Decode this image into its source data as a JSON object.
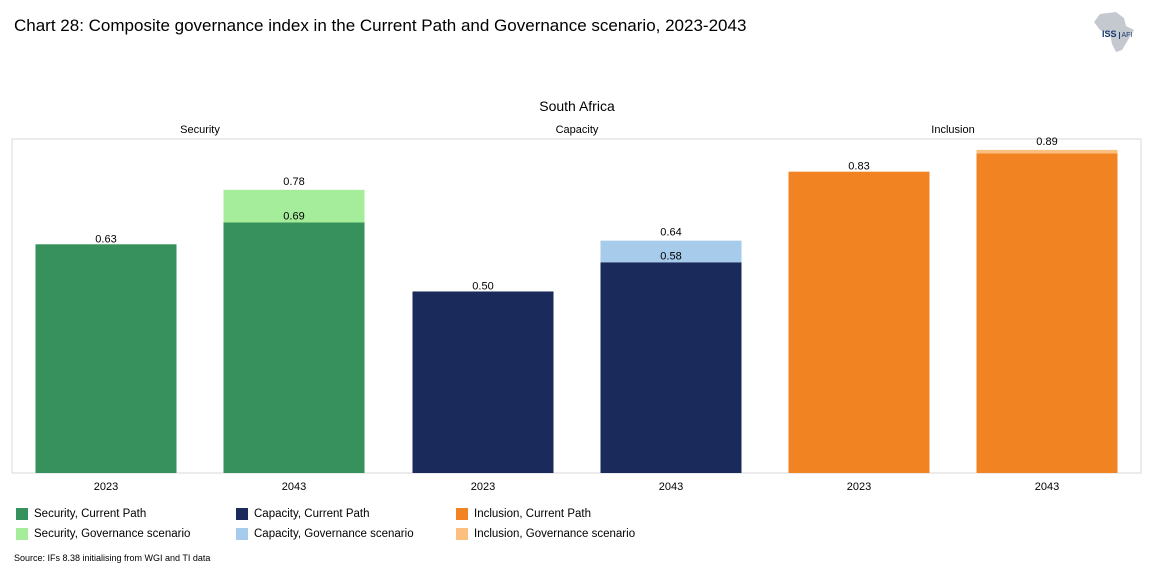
{
  "title": "Chart 28: Composite governance index in the Current Path and Governance scenario, 2023-2043",
  "logo": {
    "main": "ISS",
    "sub": "AFI"
  },
  "chart_data": {
    "type": "bar",
    "title": "South Africa",
    "facets": [
      "Security",
      "Capacity",
      "Inclusion"
    ],
    "categories": [
      "2023",
      "2043",
      "2023",
      "2043",
      "2023",
      "2043"
    ],
    "series": [
      {
        "name": "Current Path",
        "values": [
          0.63,
          0.69,
          0.5,
          0.58,
          0.83,
          0.88
        ]
      },
      {
        "name": "Governance scenario",
        "values": [
          0.63,
          0.78,
          0.5,
          0.64,
          0.83,
          0.89
        ]
      }
    ],
    "labels": {
      "current": [
        "0.63",
        "0.69",
        "0.50",
        "0.58",
        "0.83",
        ""
      ],
      "scenario": [
        "",
        "0.78",
        "",
        "0.64",
        "",
        "0.89"
      ]
    },
    "colors": {
      "current": [
        "#36915c",
        "#36915c",
        "#1a2a5a",
        "#1a2a5a",
        "#f28322",
        "#f28322"
      ],
      "scenario": [
        "#a5ec9b",
        "#a5ec9b",
        "#a7cbea",
        "#a7cbea",
        "#fbbf80",
        "#fbbf80"
      ]
    },
    "ylim": [
      0,
      0.92
    ]
  },
  "legend": [
    {
      "label": "Security, Current Path",
      "color": "#36915c"
    },
    {
      "label": "Security, Governance scenario",
      "color": "#a5ec9b"
    },
    {
      "label": "Capacity, Current Path",
      "color": "#1a2a5a"
    },
    {
      "label": "Capacity, Governance scenario",
      "color": "#a7cbea"
    },
    {
      "label": "Inclusion, Current Path",
      "color": "#f28322"
    },
    {
      "label": "Inclusion, Governance scenario",
      "color": "#fbbf80"
    }
  ],
  "source": "Source: IFs 8.38 initialising from WGI and TI data"
}
